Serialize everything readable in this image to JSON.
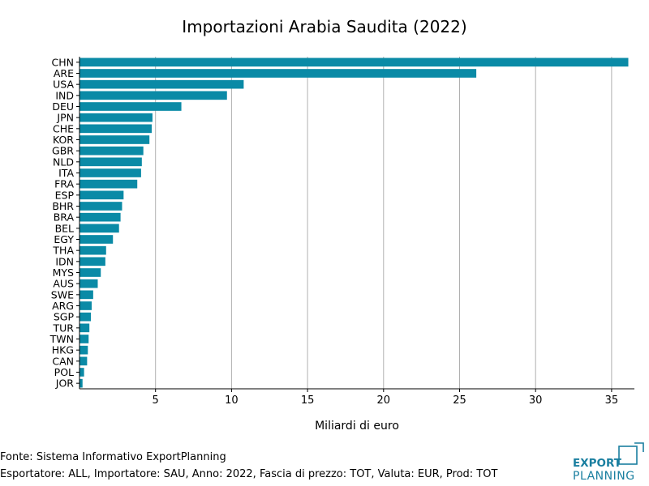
{
  "chart_data": {
    "type": "bar",
    "orientation": "horizontal",
    "title": "Importazioni Arabia Saudita (2022)",
    "xlabel": "Miliardi di euro",
    "ylabel": "",
    "xlim": [
      0,
      36.5
    ],
    "xticks": [
      5,
      10,
      15,
      20,
      25,
      30,
      35
    ],
    "grid": "vertical",
    "bar_color": "#0a8aa6",
    "categories": [
      "CHN",
      "ARE",
      "USA",
      "IND",
      "DEU",
      "JPN",
      "CHE",
      "KOR",
      "GBR",
      "NLD",
      "ITA",
      "FRA",
      "ESP",
      "BHR",
      "BRA",
      "BEL",
      "EGY",
      "THA",
      "IDN",
      "MYS",
      "AUS",
      "SWE",
      "ARG",
      "SGP",
      "TUR",
      "TWN",
      "HKG",
      "CAN",
      "POL",
      "JOR"
    ],
    "values": [
      36.1,
      26.1,
      10.8,
      9.7,
      6.7,
      4.8,
      4.75,
      4.6,
      4.2,
      4.1,
      4.05,
      3.8,
      2.9,
      2.8,
      2.7,
      2.6,
      2.2,
      1.75,
      1.7,
      1.4,
      1.2,
      0.9,
      0.8,
      0.75,
      0.65,
      0.6,
      0.55,
      0.5,
      0.3,
      0.2
    ]
  },
  "footer": {
    "source": "Fonte: Sistema Informativo ExportPlanning",
    "details": "Esportatore: ALL, Importatore: SAU, Anno: 2022, Fascia di prezzo: TOT, Valuta: EUR, Prod: TOT"
  },
  "logo": {
    "line1": "EXPORT",
    "line2": "PLANNING",
    "color": "#1a7fa0"
  }
}
